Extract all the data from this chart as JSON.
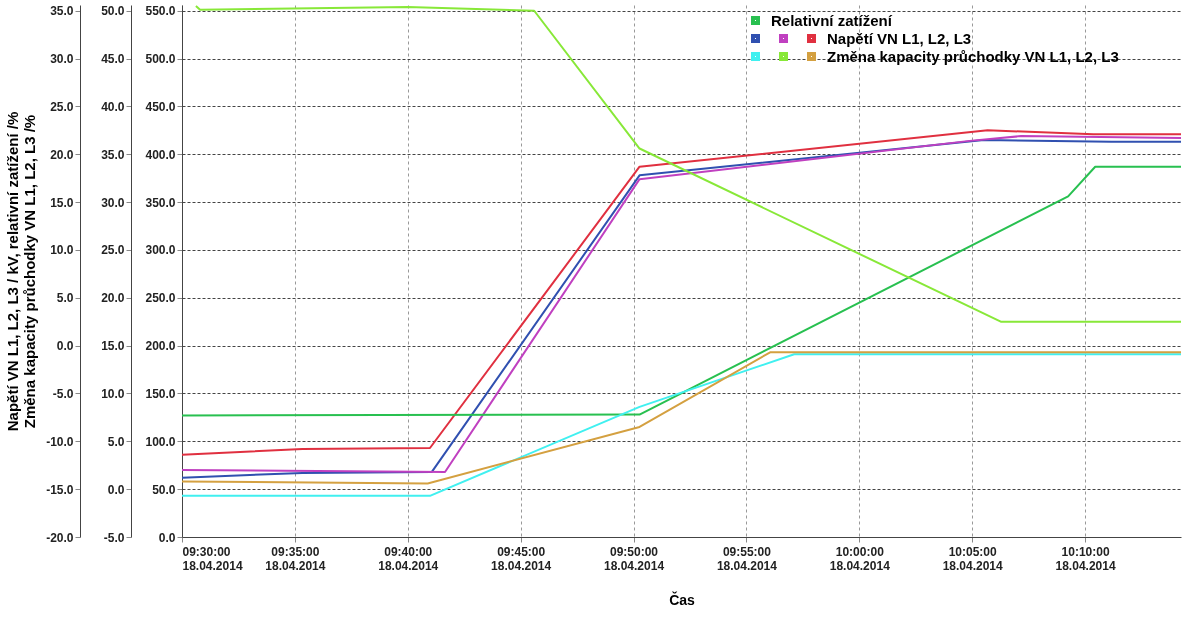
{
  "chart_data": {
    "type": "line",
    "xlabel": "Čas",
    "ylabel": "Napětí VN L1, L2, L3 / kV, relativní zatížení /%\nZměna kapacity průchodky VN L1, L2, L3 /%",
    "xlim": [
      "2014-04-18T09:30",
      "2014-04-18T10:14:15"
    ],
    "xticks": [
      {
        "value": "2014-04-18T09:30",
        "label": "09:30:00\n18.04.2014"
      },
      {
        "value": "2014-04-18T09:35",
        "label": "09:35:00\n18.04.2014"
      },
      {
        "value": "2014-04-18T09:40",
        "label": "09:40:00\n18.04.2014"
      },
      {
        "value": "2014-04-18T09:45",
        "label": "09:45:00\n18.04.2014"
      },
      {
        "value": "2014-04-18T09:50",
        "label": "09:50:00\n18.04.2014"
      },
      {
        "value": "2014-04-18T09:55",
        "label": "09:55:00\n18.04.2014"
      },
      {
        "value": "2014-04-18T10:00",
        "label": "10:00:00\n18.04.2014"
      },
      {
        "value": "2014-04-18T10:05",
        "label": "10:05:00\n18.04.2014"
      },
      {
        "value": "2014-04-18T10:10",
        "label": "10:10:00\n18.04.2014"
      }
    ],
    "ylim": [
      -20,
      35.6
    ],
    "yticks": [
      {
        "value": -20,
        "label": "-20.0"
      },
      {
        "value": -15,
        "label": "-15.0"
      },
      {
        "value": -10,
        "label": "-10.0"
      },
      {
        "value": -5,
        "label": "-5.0"
      },
      {
        "value": 0,
        "label": "0.0"
      },
      {
        "value": 5,
        "label": "5.0"
      },
      {
        "value": 10,
        "label": "10.0"
      },
      {
        "value": 15,
        "label": "15.0"
      },
      {
        "value": 20,
        "label": "20.0"
      },
      {
        "value": 25,
        "label": "25.0"
      },
      {
        "value": 30,
        "label": "30.0"
      },
      {
        "value": 35,
        "label": "35.0"
      }
    ],
    "y2lim": [
      -5,
      50.6
    ],
    "y2ticks": [
      {
        "value": -5,
        "label": "-5.0"
      },
      {
        "value": 0,
        "label": "0.0"
      },
      {
        "value": 5,
        "label": "5.0"
      },
      {
        "value": 10,
        "label": "10.0"
      },
      {
        "value": 15,
        "label": "15.0"
      },
      {
        "value": 20,
        "label": "20.0"
      },
      {
        "value": 25,
        "label": "25.0"
      },
      {
        "value": 30,
        "label": "30.0"
      },
      {
        "value": 35,
        "label": "35.0"
      },
      {
        "value": 40,
        "label": "40.0"
      },
      {
        "value": 45,
        "label": "45.0"
      },
      {
        "value": 50,
        "label": "50.0"
      }
    ],
    "y3lim": [
      0,
      556
    ],
    "y3ticks": [
      {
        "value": 0,
        "label": "0.0"
      },
      {
        "value": 50,
        "label": "50.0"
      },
      {
        "value": 100,
        "label": "100.0"
      },
      {
        "value": 150,
        "label": "150.0"
      },
      {
        "value": 200,
        "label": "200.0"
      },
      {
        "value": 250,
        "label": "250.0"
      },
      {
        "value": 300,
        "label": "300.0"
      },
      {
        "value": 350,
        "label": "350.0"
      },
      {
        "value": 400,
        "label": "400.0"
      },
      {
        "value": 450,
        "label": "450.0"
      },
      {
        "value": 500,
        "label": "500.0"
      },
      {
        "value": 550,
        "label": "550.0"
      }
    ],
    "grid": true,
    "legend": "top right",
    "marker": "none",
    "line_style": "solid",
    "series": [
      {
        "name": "Relativní zatížení",
        "color": "#28c050",
        "axis": "y2",
        "x": [
          "2014-04-18T09:30",
          "2014-04-18T09:50:16",
          "2014-04-18T10:09:15",
          "2014-04-18T10:10:27",
          "2014-04-18T10:14:15"
        ],
        "values": [
          7.7,
          7.8,
          30.6,
          33.7,
          33.7
        ]
      },
      {
        "color": "#3050b0",
        "axis": "y3",
        "x": [
          "2014-04-18T09:30",
          "2014-04-18T09:35:20",
          "2014-04-18T09:41:04",
          "2014-04-18T09:50:16",
          "2014-04-18T10:05:31",
          "2014-04-18T10:11:10",
          "2014-04-18T10:14:15"
        ],
        "values": [
          62,
          67,
          68,
          378,
          415,
          413,
          413
        ]
      },
      {
        "color": "#c040c0",
        "axis": "y3",
        "x": [
          "2014-04-18T09:30",
          "2014-04-18T09:41:39",
          "2014-04-18T09:50:16",
          "2014-04-18T10:04:53",
          "2014-04-18T10:07:10",
          "2014-04-18T10:14:15"
        ],
        "values": [
          70,
          68,
          374,
          414,
          419,
          417
        ]
      },
      {
        "name": "Napětí VN L1, L2, L3",
        "color": "#e03040",
        "axis": "y3",
        "x": [
          "2014-04-18T09:30",
          "2014-04-18T09:35:20",
          "2014-04-18T09:40:59",
          "2014-04-18T09:50:16",
          "2014-04-18T10:05:41",
          "2014-04-18T10:10:22",
          "2014-04-18T10:14:15"
        ],
        "values": [
          86,
          92,
          93,
          387,
          425,
          421,
          421
        ]
      },
      {
        "color": "#40f0f0",
        "axis": "y",
        "x": [
          "2014-04-18T09:30",
          "2014-04-18T09:40:59",
          "2014-04-18T09:50:16",
          "2014-04-18T09:57:07",
          "2014-04-18T10:14:15"
        ],
        "values": [
          -15.7,
          -15.7,
          -6.4,
          -0.9,
          -0.9
        ]
      },
      {
        "color": "#88e838",
        "axis": "y",
        "x": [
          "2014-04-18T09:30:37",
          "2014-04-18T09:30:48",
          "2014-04-18T09:40",
          "2014-04-18T09:45:36",
          "2014-04-18T09:50:16",
          "2014-04-18T10:06:16",
          "2014-04-18T10:14:15"
        ],
        "values": [
          35.5,
          35.1,
          35.4,
          35.0,
          20.6,
          2.5,
          2.5
        ]
      },
      {
        "name": "Změna kapacity průchodky VN L1, L2, L3",
        "color": "#d4a040",
        "axis": "y",
        "x": [
          "2014-04-18T09:30",
          "2014-04-18T09:40:53",
          "2014-04-18T09:50:16",
          "2014-04-18T09:56:03",
          "2014-04-18T10:14:15"
        ],
        "values": [
          -14.2,
          -14.4,
          -8.5,
          -0.7,
          -0.7
        ]
      }
    ]
  }
}
